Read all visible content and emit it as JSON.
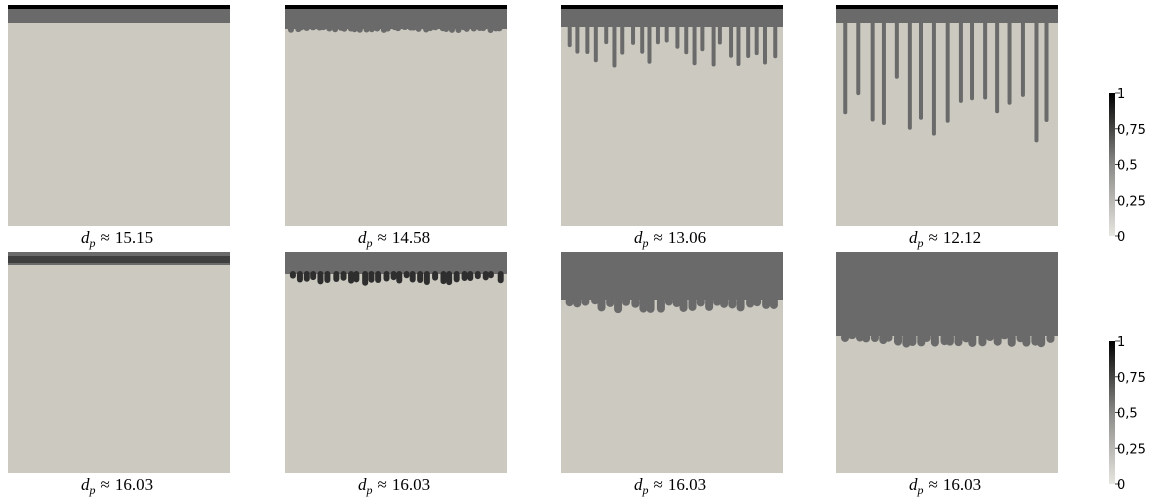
{
  "panels": [
    {
      "caption": {
        "symbol": "d",
        "subscript": "p",
        "relation": "≈",
        "value": 15.15
      }
    },
    {
      "caption": {
        "symbol": "d",
        "subscript": "p",
        "relation": "≈",
        "value": 14.58
      }
    },
    {
      "caption": {
        "symbol": "d",
        "subscript": "p",
        "relation": "≈",
        "value": 13.06
      }
    },
    {
      "caption": {
        "symbol": "d",
        "subscript": "p",
        "relation": "≈",
        "value": 12.12
      }
    },
    {
      "caption": {
        "symbol": "d",
        "subscript": "p",
        "relation": "≈",
        "value": 16.03
      }
    },
    {
      "caption": {
        "symbol": "d",
        "subscript": "p",
        "relation": "≈",
        "value": 16.03
      }
    },
    {
      "caption": {
        "symbol": "d",
        "subscript": "p",
        "relation": "≈",
        "value": 16.03
      }
    },
    {
      "caption": {
        "symbol": "d",
        "subscript": "p",
        "relation": "≈",
        "value": 16.03
      }
    }
  ],
  "colorbars": [
    {
      "range": [
        0,
        1
      ],
      "ticks": [
        {
          "value": 1,
          "label": "1"
        },
        {
          "value": 0.75,
          "label": "0,75"
        },
        {
          "value": 0.5,
          "label": "0,5"
        },
        {
          "value": 0.25,
          "label": "0,25"
        },
        {
          "value": 0,
          "label": "0"
        }
      ]
    },
    {
      "range": [
        0,
        1
      ],
      "ticks": [
        {
          "value": 1,
          "label": "1"
        },
        {
          "value": 0.75,
          "label": "0,75"
        },
        {
          "value": 0.5,
          "label": "0,5"
        },
        {
          "value": 0.25,
          "label": "0,25"
        },
        {
          "value": 0,
          "label": "0"
        }
      ]
    }
  ]
}
